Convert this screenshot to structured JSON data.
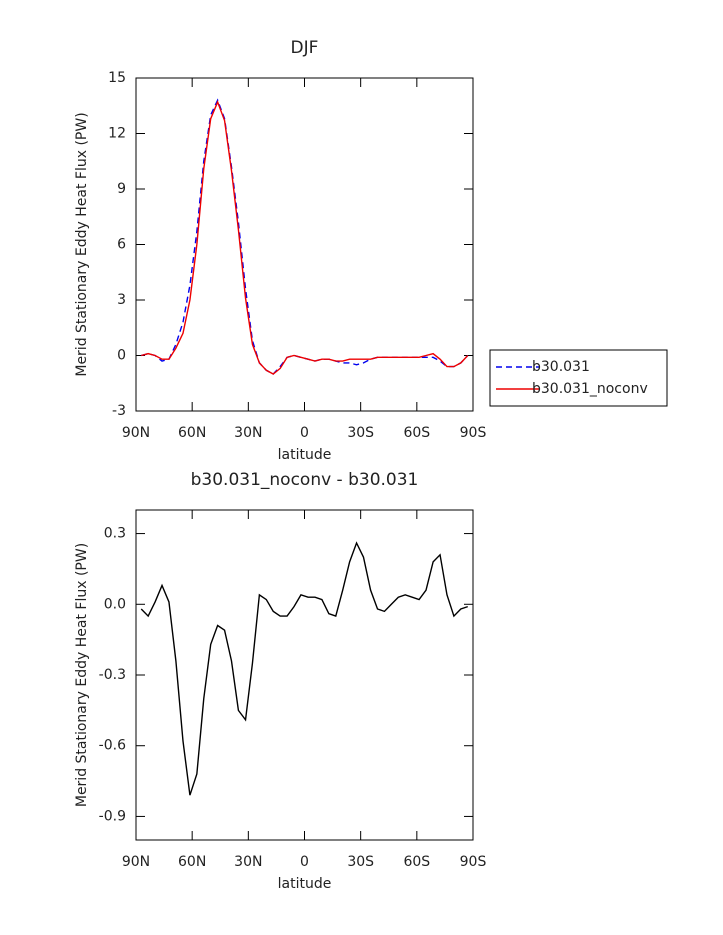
{
  "chart_data": [
    {
      "type": "line",
      "title": "DJF",
      "ylabel": "Merid Stationary Eddy Heat Flux (PW)",
      "xlabel": "latitude",
      "x": [
        87.2,
        83.5,
        79.8,
        76.1,
        72.4,
        68.7,
        64.9,
        61.2,
        57.5,
        53.8,
        50.1,
        46.4,
        42.7,
        39.0,
        35.3,
        31.5,
        27.8,
        24.1,
        20.4,
        16.7,
        13.0,
        9.3,
        5.6,
        1.9,
        -1.9,
        -5.6,
        -9.3,
        -13.0,
        -16.7,
        -20.4,
        -24.1,
        -27.8,
        -31.5,
        -35.3,
        -39.0,
        -42.7,
        -46.4,
        -50.1,
        -53.8,
        -57.5,
        -61.2,
        -64.9,
        -68.7,
        -72.4,
        -76.1,
        -79.8,
        -83.5,
        -87.2
      ],
      "series": [
        {
          "name": "b30.031",
          "color": "#0000ee",
          "linestyle": "dashed",
          "values": [
            0.0,
            0.1,
            0.0,
            -0.3,
            -0.2,
            0.6,
            1.8,
            3.8,
            6.7,
            10.5,
            13.0,
            13.8,
            12.8,
            10.2,
            7.2,
            3.6,
            0.8,
            -0.4,
            -0.8,
            -1.0,
            -0.6,
            -0.1,
            0.0,
            -0.1,
            -0.2,
            -0.3,
            -0.2,
            -0.2,
            -0.3,
            -0.4,
            -0.4,
            -0.5,
            -0.4,
            -0.2,
            -0.1,
            -0.1,
            -0.1,
            -0.1,
            -0.1,
            -0.1,
            -0.1,
            -0.1,
            -0.1,
            -0.3,
            -0.6,
            -0.6,
            -0.4,
            0.0
          ]
        },
        {
          "name": "b30.031_noconv",
          "color": "#ee0000",
          "linestyle": "solid",
          "values": [
            0.0,
            0.1,
            0.0,
            -0.2,
            -0.2,
            0.4,
            1.2,
            3.0,
            6.0,
            10.1,
            12.8,
            13.7,
            12.7,
            10.0,
            6.8,
            3.1,
            0.6,
            -0.4,
            -0.8,
            -1.0,
            -0.7,
            -0.1,
            0.0,
            -0.1,
            -0.2,
            -0.3,
            -0.2,
            -0.2,
            -0.3,
            -0.3,
            -0.2,
            -0.2,
            -0.2,
            -0.2,
            -0.1,
            -0.1,
            -0.1,
            -0.1,
            -0.1,
            -0.1,
            -0.1,
            0.0,
            0.1,
            -0.2,
            -0.6,
            -0.6,
            -0.4,
            0.0
          ]
        }
      ],
      "xlim": [
        90,
        -90
      ],
      "xticks": [
        {
          "value": 90,
          "label": "90N"
        },
        {
          "value": 60,
          "label": "60N"
        },
        {
          "value": 30,
          "label": "30N"
        },
        0,
        {
          "value": -30,
          "label": "30S"
        },
        {
          "value": -60,
          "label": "60S"
        },
        {
          "value": -90,
          "label": "90S"
        }
      ],
      "ylim": [
        -3,
        15
      ],
      "yticks": [
        -3,
        0,
        3,
        6,
        9,
        12,
        15
      ],
      "legend": "right"
    },
    {
      "type": "line",
      "title": "b30.031_noconv - b30.031",
      "ylabel": "Merid Stationary Eddy Heat Flux (PW)",
      "xlabel": "latitude",
      "x": [
        87.2,
        83.5,
        79.8,
        76.1,
        72.4,
        68.7,
        64.9,
        61.2,
        57.5,
        53.8,
        50.1,
        46.4,
        42.7,
        39.0,
        35.3,
        31.5,
        27.8,
        24.1,
        20.4,
        16.7,
        13.0,
        9.3,
        5.6,
        1.9,
        -1.9,
        -5.6,
        -9.3,
        -13.0,
        -16.7,
        -20.4,
        -24.1,
        -27.8,
        -31.5,
        -35.3,
        -39.0,
        -42.7,
        -46.4,
        -50.1,
        -53.8,
        -57.5,
        -61.2,
        -64.9,
        -68.7,
        -72.4,
        -76.1,
        -79.8,
        -83.5,
        -87.2
      ],
      "color": "#000000",
      "values": [
        -0.02,
        -0.05,
        0.01,
        0.08,
        0.01,
        -0.24,
        -0.58,
        -0.81,
        -0.72,
        -0.4,
        -0.17,
        -0.09,
        -0.11,
        -0.24,
        -0.45,
        -0.49,
        -0.25,
        0.04,
        0.02,
        -0.03,
        -0.05,
        -0.05,
        -0.01,
        0.04,
        0.03,
        0.03,
        0.02,
        -0.04,
        -0.05,
        0.06,
        0.18,
        0.26,
        0.2,
        0.06,
        -0.02,
        -0.03,
        0.0,
        0.03,
        0.04,
        0.03,
        0.02,
        0.06,
        0.18,
        0.21,
        0.04,
        -0.05,
        -0.02,
        -0.01
      ],
      "xlim": [
        90,
        -90
      ],
      "xticks": [
        {
          "value": 90,
          "label": "90N"
        },
        {
          "value": 60,
          "label": "60N"
        },
        {
          "value": 30,
          "label": "30N"
        },
        0,
        {
          "value": -30,
          "label": "30S"
        },
        {
          "value": -60,
          "label": "60S"
        },
        {
          "value": -90,
          "label": "90S"
        }
      ],
      "ylim": [
        -1.0,
        0.4
      ],
      "yticks": [
        -0.9,
        -0.6,
        -0.3,
        {
          "value": 0,
          "label": "0.0"
        },
        0.3
      ]
    }
  ]
}
